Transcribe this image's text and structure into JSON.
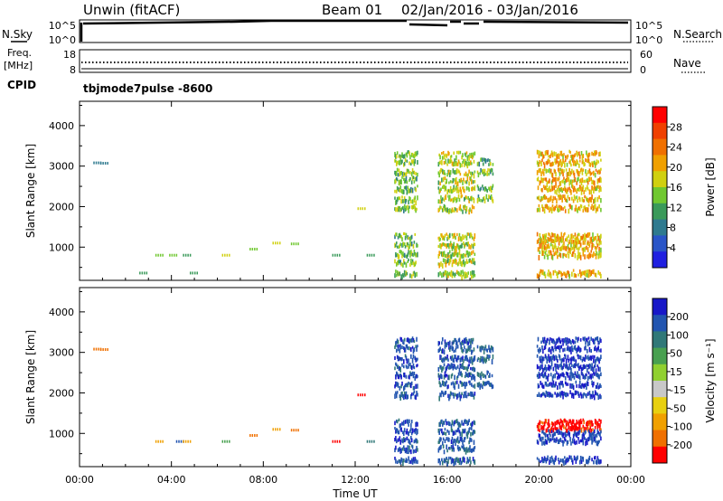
{
  "header": {
    "station": "Unwin (fitACF)",
    "beam": "Beam 01",
    "date_range": "02/Jan/2016 - 03/Jan/2016"
  },
  "noise_panel": {
    "left_label": "N.Sky",
    "right_label": "N.Search",
    "ticks_left": [
      "10^5",
      "10^0"
    ],
    "ticks_right": [
      "10^5",
      "10^0"
    ]
  },
  "freq_panel": {
    "label_line1": "Freq.",
    "label_line2": "[MHz]",
    "ticks_left": [
      "18",
      "8"
    ],
    "ticks_right": [
      "60",
      "0"
    ],
    "right_label": "Nave",
    "cpid_label": "CPID",
    "cpid_value": "tbjmode7pulse -8600"
  },
  "x_axis": {
    "label": "Time UT",
    "ticks": [
      "00:00",
      "04:00",
      "08:00",
      "12:00",
      "16:00",
      "20:00",
      "00:00"
    ]
  },
  "colorbars": {
    "power": {
      "label": "Power [dB]",
      "ticks": [
        "28",
        "24",
        "20",
        "16",
        "12",
        "8",
        "4"
      ],
      "colors": [
        "#2020e0",
        "#2a55c8",
        "#2f7a8f",
        "#3a9a5a",
        "#70c830",
        "#d0d010",
        "#f0a000",
        "#f07000",
        "#f04000",
        "#ff0000"
      ]
    },
    "velocity": {
      "label": "Velocity [m s⁻¹]",
      "ticks": [
        "200",
        "100",
        "50",
        "15",
        "-15",
        "-50",
        "-100",
        "-200"
      ],
      "colors": [
        "#1818c8",
        "#2255b0",
        "#307878",
        "#48a050",
        "#90d030",
        "#c8c8c8",
        "#e8d010",
        "#f0a000",
        "#f07000",
        "#ff0000"
      ]
    }
  },
  "chart_data": [
    {
      "type": "heatmap",
      "name": "power",
      "ylabel": "Slant Range [km]",
      "yticks": [
        1000,
        2000,
        3000,
        4000
      ],
      "ylim": [
        180,
        4600
      ],
      "xlim_hours": [
        0,
        24
      ],
      "xticks_hours": [
        0,
        4,
        8,
        12,
        16,
        20,
        24
      ],
      "value_range": [
        0,
        32
      ],
      "blocks": [
        {
          "t0": 13.7,
          "t1": 14.7,
          "ranges": [
            3280,
            3100,
            2850,
            2650,
            2430,
            2180,
            1960,
            1260,
            1050,
            830,
            620,
            340
          ],
          "value": 14
        },
        {
          "t0": 15.6,
          "t1": 17.2,
          "ranges": [
            3270,
            3080,
            2840,
            2640,
            2430,
            2200,
            1950,
            1250,
            1050,
            830,
            620,
            330
          ],
          "value": 16
        },
        {
          "t0": 17.3,
          "t1": 18.0,
          "ranges": [
            3100,
            2850,
            2450,
            2200
          ],
          "value": 13
        },
        {
          "t0": 19.9,
          "t1": 22.7,
          "ranges": [
            3290,
            3080,
            2850,
            2630,
            2430,
            2200,
            1960,
            1260,
            1130,
            1000,
            820,
            350
          ],
          "value": 20
        }
      ],
      "scatter_points": [
        {
          "t": 0.6,
          "r": 3080,
          "value": 8
        },
        {
          "t": 0.9,
          "r": 3070,
          "value": 8
        },
        {
          "t": 2.6,
          "r": 360,
          "value": 12
        },
        {
          "t": 3.3,
          "r": 800,
          "value": 14
        },
        {
          "t": 3.9,
          "r": 800,
          "value": 14
        },
        {
          "t": 4.5,
          "r": 800,
          "value": 12
        },
        {
          "t": 4.8,
          "r": 360,
          "value": 10
        },
        {
          "t": 6.2,
          "r": 800,
          "value": 16
        },
        {
          "t": 7.4,
          "r": 950,
          "value": 15
        },
        {
          "t": 8.4,
          "r": 1100,
          "value": 18
        },
        {
          "t": 9.2,
          "r": 1080,
          "value": 14
        },
        {
          "t": 11.0,
          "r": 800,
          "value": 12
        },
        {
          "t": 12.5,
          "r": 800,
          "value": 12
        },
        {
          "t": 12.1,
          "r": 1950,
          "value": 16
        }
      ]
    },
    {
      "type": "heatmap",
      "name": "velocity",
      "ylabel": "Slant Range [km]",
      "yticks": [
        1000,
        2000,
        3000,
        4000
      ],
      "ylim": [
        180,
        4600
      ],
      "xlim_hours": [
        0,
        24
      ],
      "xticks_hours": [
        0,
        4,
        8,
        12,
        16,
        20,
        24
      ],
      "value_range": [
        -250,
        250
      ],
      "blocks": [
        {
          "t0": 13.7,
          "t1": 14.7,
          "ranges": [
            3280,
            3100,
            2850,
            2650,
            2430,
            2180,
            1960,
            1260,
            1050,
            830,
            620,
            340
          ],
          "value": 180
        },
        {
          "t0": 15.6,
          "t1": 17.2,
          "ranges": [
            3270,
            3080,
            2840,
            2640,
            2430,
            2200,
            1950,
            1250,
            1050,
            830,
            620,
            330
          ],
          "value": 170
        },
        {
          "t0": 17.3,
          "t1": 18.0,
          "ranges": [
            3100,
            2850,
            2450,
            2200
          ],
          "value": 160
        },
        {
          "t0": 19.9,
          "t1": 22.7,
          "ranges": [
            3290,
            3080,
            2850,
            2630,
            2430,
            2200,
            1960
          ],
          "value": 200
        },
        {
          "t0": 19.9,
          "t1": 22.7,
          "ranges": [
            1260,
            1130
          ],
          "value": -220
        },
        {
          "t0": 19.9,
          "t1": 22.7,
          "ranges": [
            1000,
            820,
            350
          ],
          "value": 190
        }
      ],
      "scatter_points": [
        {
          "t": 0.6,
          "r": 3080,
          "value": -150
        },
        {
          "t": 0.9,
          "r": 3070,
          "value": -150
        },
        {
          "t": 3.3,
          "r": 800,
          "value": -120
        },
        {
          "t": 4.2,
          "r": 800,
          "value": 150
        },
        {
          "t": 4.5,
          "r": 800,
          "value": -120
        },
        {
          "t": 6.2,
          "r": 800,
          "value": 100
        },
        {
          "t": 7.4,
          "r": 950,
          "value": -150
        },
        {
          "t": 8.4,
          "r": 1100,
          "value": -120
        },
        {
          "t": 9.2,
          "r": 1080,
          "value": -150
        },
        {
          "t": 11.0,
          "r": 800,
          "value": -200
        },
        {
          "t": 12.5,
          "r": 800,
          "value": 120
        },
        {
          "t": 12.1,
          "r": 1950,
          "value": -200
        }
      ]
    }
  ]
}
